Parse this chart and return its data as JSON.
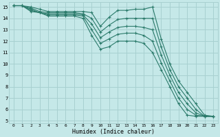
{
  "xlabel": "Humidex (Indice chaleur)",
  "bg_color": "#c5e8e8",
  "grid_color": "#a8d0d0",
  "line_color": "#2a7a6a",
  "xlim": [
    -0.5,
    23.5
  ],
  "ylim": [
    4.8,
    15.4
  ],
  "xticks": [
    0,
    1,
    2,
    3,
    4,
    5,
    6,
    7,
    8,
    9,
    10,
    11,
    12,
    13,
    14,
    15,
    16,
    17,
    18,
    19,
    20,
    21,
    22,
    23
  ],
  "yticks": [
    5,
    6,
    7,
    8,
    9,
    10,
    11,
    12,
    13,
    14,
    15
  ],
  "lines": [
    {
      "x": [
        0,
        1,
        2,
        3,
        4,
        5,
        6,
        7,
        8,
        9,
        10,
        11,
        12,
        13,
        14,
        15,
        16,
        17,
        18,
        19,
        20,
        21,
        22,
        23
      ],
      "y": [
        15.1,
        15.1,
        15.0,
        14.8,
        14.6,
        14.6,
        14.6,
        14.6,
        14.6,
        14.5,
        13.3,
        14.1,
        14.7,
        14.7,
        14.8,
        14.8,
        15.0,
        12.2,
        10.0,
        8.5,
        7.5,
        6.5,
        5.5,
        5.4
      ]
    },
    {
      "x": [
        0,
        1,
        2,
        3,
        4,
        5,
        6,
        7,
        8,
        9,
        10,
        11,
        12,
        13,
        14,
        15,
        16,
        17,
        18,
        19,
        20,
        21,
        22,
        23
      ],
      "y": [
        15.1,
        15.1,
        14.9,
        14.6,
        14.5,
        14.5,
        14.5,
        14.5,
        14.4,
        14.0,
        12.8,
        13.4,
        13.9,
        14.0,
        14.0,
        14.0,
        14.0,
        11.5,
        9.5,
        8.0,
        7.0,
        6.0,
        5.4,
        5.4
      ]
    },
    {
      "x": [
        0,
        1,
        2,
        3,
        4,
        5,
        6,
        7,
        8,
        9,
        10,
        11,
        12,
        13,
        14,
        15,
        16,
        17,
        18,
        19,
        20,
        21,
        22,
        23
      ],
      "y": [
        15.1,
        15.1,
        14.8,
        14.5,
        14.4,
        14.4,
        14.4,
        14.4,
        14.3,
        13.5,
        12.3,
        12.8,
        13.2,
        13.3,
        13.3,
        13.2,
        13.0,
        10.8,
        9.0,
        7.5,
        6.5,
        5.7,
        5.4,
        5.4
      ]
    },
    {
      "x": [
        0,
        1,
        2,
        3,
        4,
        5,
        6,
        7,
        8,
        9,
        10,
        11,
        12,
        13,
        14,
        15,
        16,
        17,
        18,
        19,
        20,
        21,
        22,
        23
      ],
      "y": [
        15.1,
        15.1,
        14.7,
        14.5,
        14.3,
        14.3,
        14.3,
        14.3,
        14.2,
        13.0,
        11.8,
        12.2,
        12.6,
        12.7,
        12.7,
        12.5,
        12.0,
        10.1,
        8.5,
        7.0,
        6.0,
        5.5,
        5.4,
        5.4
      ]
    },
    {
      "x": [
        0,
        1,
        2,
        3,
        4,
        5,
        6,
        7,
        8,
        9,
        10,
        11,
        12,
        13,
        14,
        15,
        16,
        17,
        18,
        19,
        20,
        21,
        22,
        23
      ],
      "y": [
        15.1,
        15.1,
        14.6,
        14.5,
        14.2,
        14.2,
        14.2,
        14.2,
        14.0,
        12.5,
        11.3,
        11.5,
        12.0,
        12.0,
        12.0,
        11.8,
        11.0,
        9.5,
        8.0,
        6.5,
        5.5,
        5.4,
        5.4,
        5.4
      ]
    }
  ]
}
